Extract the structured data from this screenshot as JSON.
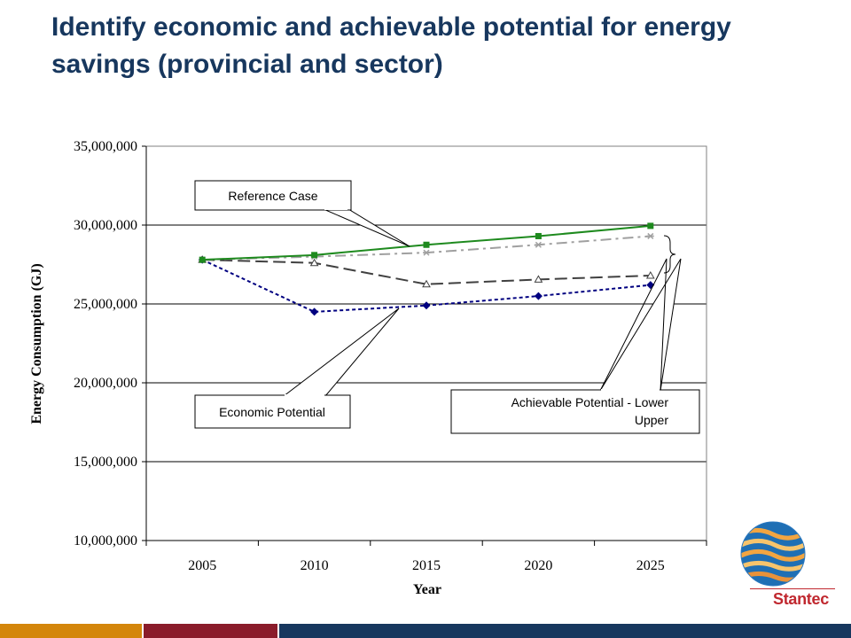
{
  "slide": {
    "title": "Identify economic and achievable potential for energy savings (provincial and sector)"
  },
  "chart_data": {
    "type": "line",
    "categories": [
      "2005",
      "2010",
      "2015",
      "2020",
      "2025"
    ],
    "xlabel": "Year",
    "ylabel": "Energy Consumption (GJ)",
    "ylim": [
      10000000,
      35000000
    ],
    "yticks": [
      "10,000,000",
      "15,000,000",
      "20,000,000",
      "25,000,000",
      "30,000,000",
      "35,000,000"
    ],
    "grid": true,
    "series": [
      {
        "name": "Reference Case",
        "values": [
          27800000,
          28100000,
          28750000,
          29300000,
          29950000
        ],
        "color": "#1e8a1e",
        "marker": "square",
        "dash": "solid"
      },
      {
        "name": "Upper",
        "values": [
          27800000,
          28000000,
          28250000,
          28750000,
          29300000
        ],
        "color": "#a0a0a0",
        "marker": "star",
        "dash": "dashdot"
      },
      {
        "name": "Lower",
        "values": [
          27800000,
          27600000,
          26250000,
          26550000,
          26800000
        ],
        "color": "#404040",
        "marker": "triangle",
        "dash": "dash"
      },
      {
        "name": "Economic Potential",
        "values": [
          27800000,
          24500000,
          24900000,
          25500000,
          26200000
        ],
        "color": "#000080",
        "marker": "diamond",
        "dash": "dot"
      }
    ],
    "annotations": {
      "reference": "Reference Case",
      "economic": "Economic Potential",
      "achievable_line1": "Achievable Potential - Lower",
      "achievable_line2": "Upper"
    }
  },
  "logo": {
    "text": "Stantec"
  },
  "footer_colors": [
    "#d4860b",
    "#8a1c2b",
    "#17375e"
  ]
}
